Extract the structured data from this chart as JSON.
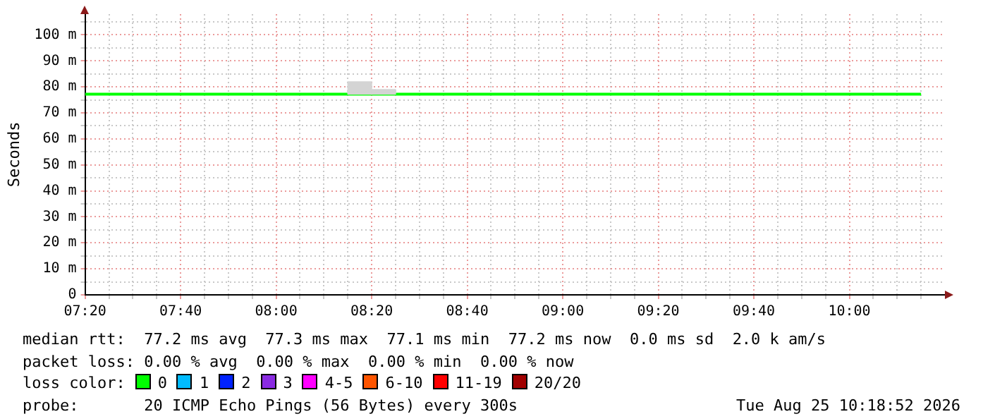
{
  "chart_data": {
    "type": "line",
    "ylabel": "Seconds",
    "xlim": [
      7.3333,
      10.3333
    ],
    "xticks": [
      {
        "value": 7.3333,
        "label": "07:20"
      },
      {
        "value": 7.4167,
        "label": null
      },
      {
        "value": 7.5,
        "label": null
      },
      {
        "value": 7.5833,
        "label": null
      },
      {
        "value": 7.6667,
        "label": "07:40"
      },
      {
        "value": 7.75,
        "label": null
      },
      {
        "value": 7.8333,
        "label": null
      },
      {
        "value": 7.9167,
        "label": null
      },
      {
        "value": 8,
        "label": "08:00"
      },
      {
        "value": 8.0833,
        "label": null
      },
      {
        "value": 8.1667,
        "label": null
      },
      {
        "value": 8.25,
        "label": null
      },
      {
        "value": 8.3333,
        "label": "08:20"
      },
      {
        "value": 8.4167,
        "label": null
      },
      {
        "value": 8.5,
        "label": null
      },
      {
        "value": 8.5833,
        "label": null
      },
      {
        "value": 8.6667,
        "label": "08:40"
      },
      {
        "value": 8.75,
        "label": null
      },
      {
        "value": 8.8333,
        "label": null
      },
      {
        "value": 8.9167,
        "label": null
      },
      {
        "value": 9,
        "label": "09:00"
      },
      {
        "value": 9.0833,
        "label": null
      },
      {
        "value": 9.1667,
        "label": null
      },
      {
        "value": 9.25,
        "label": null
      },
      {
        "value": 9.3333,
        "label": "09:20"
      },
      {
        "value": 9.4167,
        "label": null
      },
      {
        "value": 9.5,
        "label": null
      },
      {
        "value": 9.5833,
        "label": null
      },
      {
        "value": 9.6667,
        "label": "09:40"
      },
      {
        "value": 9.75,
        "label": null
      },
      {
        "value": 9.8333,
        "label": null
      },
      {
        "value": 9.9167,
        "label": null
      },
      {
        "value": 10,
        "label": "10:00"
      },
      {
        "value": 10.0833,
        "label": null
      },
      {
        "value": 10.1667,
        "label": null
      },
      {
        "value": 10.25,
        "label": null
      }
    ],
    "ylim": [
      0,
      108
    ],
    "yticks": [
      {
        "value": 0,
        "label": "0"
      },
      {
        "value": 5,
        "label": null
      },
      {
        "value": 10,
        "label": "10 m"
      },
      {
        "value": 15,
        "label": null
      },
      {
        "value": 20,
        "label": "20 m"
      },
      {
        "value": 25,
        "label": null
      },
      {
        "value": 30,
        "label": "30 m"
      },
      {
        "value": 35,
        "label": null
      },
      {
        "value": 40,
        "label": "40 m"
      },
      {
        "value": 45,
        "label": null
      },
      {
        "value": 50,
        "label": "50 m"
      },
      {
        "value": 55,
        "label": null
      },
      {
        "value": 60,
        "label": "60 m"
      },
      {
        "value": 65,
        "label": null
      },
      {
        "value": 70,
        "label": "70 m"
      },
      {
        "value": 75,
        "label": null
      },
      {
        "value": 80,
        "label": "80 m"
      },
      {
        "value": 85,
        "label": null
      },
      {
        "value": 90,
        "label": "90 m"
      },
      {
        "value": 95,
        "label": null
      },
      {
        "value": 100,
        "label": "100 m"
      },
      {
        "value": 105,
        "label": null
      }
    ],
    "series": [
      {
        "type": "bar",
        "color": "#d4d4d4",
        "x": [
          8.2917,
          8.375
        ],
        "base": [
          77.2,
          77.2
        ],
        "values": [
          4.8,
          1.8
        ]
      },
      {
        "color": "#00ff00",
        "x": [
          7.3333,
          10.25
        ],
        "values": [
          77.2,
          77.2
        ]
      }
    ],
    "grid": true,
    "legend": false,
    "marker": "none",
    "annotations": [
      "median rtt:  77.2 ms avg  77.3 ms max  77.1 ms min  77.2 ms now  0.0 ms sd  2.0 k am/s",
      "packet loss: 0.00 % avg  0.00 % max  0.00 % min  0.00 % now",
      "loss color:",
      "0",
      "1",
      "2",
      "3",
      "4-5",
      "6-10",
      "11-19",
      "20/20",
      "probe:       20 ICMP Echo Pings (56 Bytes) every 300s",
      "Tue Aug 25 10:18:52 2026"
    ]
  }
}
